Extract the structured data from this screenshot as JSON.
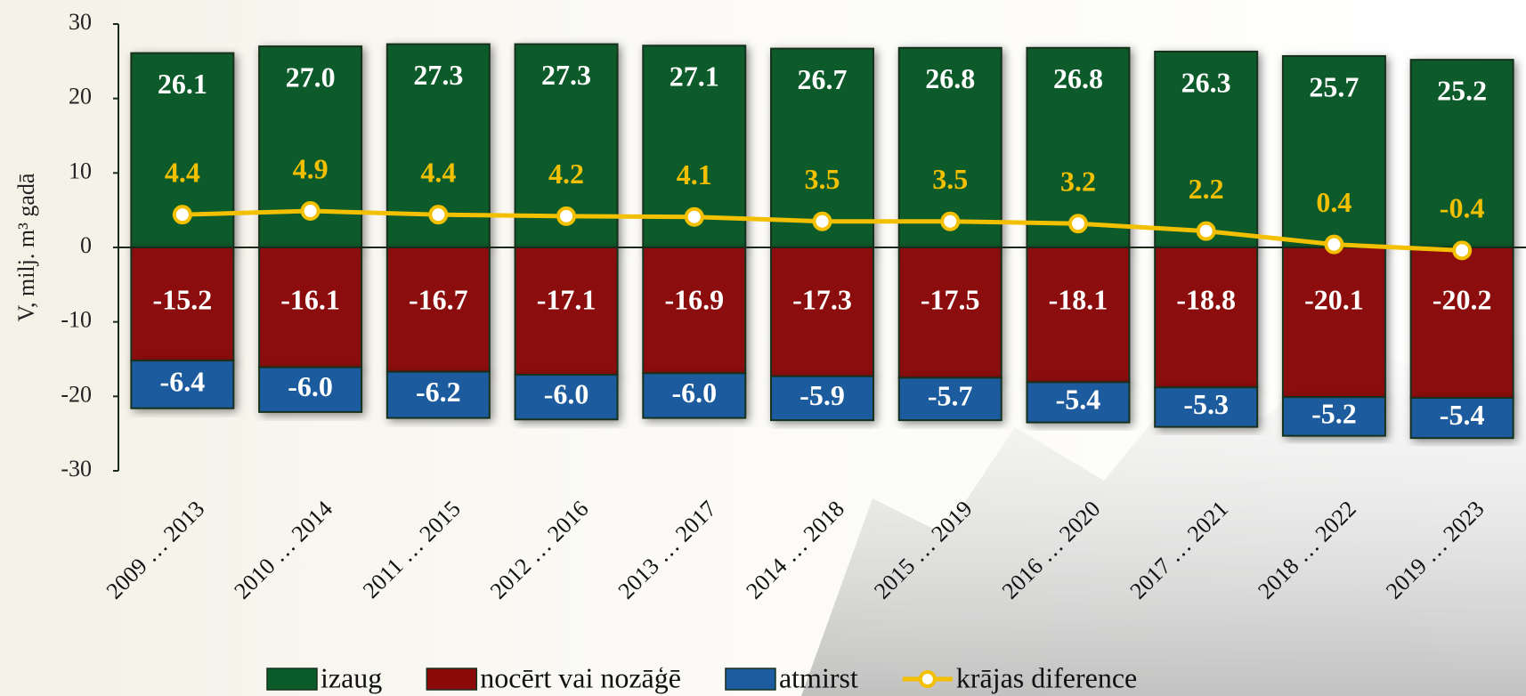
{
  "chart_data": {
    "type": "bar",
    "stacked": true,
    "y_label": "V, milj. m³ gadā",
    "categories": [
      "2009 … 2013",
      "2010 … 2014",
      "2011 … 2015",
      "2012 … 2016",
      "2013 … 2017",
      "2014 … 2018",
      "2015 … 2019",
      "2016 … 2020",
      "2017 … 2021",
      "2018 … 2022",
      "2019 … 2023"
    ],
    "series": [
      {
        "name": "izaug",
        "type": "bar",
        "color": "#0b5a2a",
        "values": [
          26.1,
          27.0,
          27.3,
          27.3,
          27.1,
          26.7,
          26.8,
          26.8,
          26.3,
          25.7,
          25.2
        ],
        "value_labels": [
          "26.1",
          "27.0",
          "27.3",
          "27.3",
          "27.1",
          "26.7",
          "26.8",
          "26.8",
          "26.3",
          "25.7",
          "25.2"
        ]
      },
      {
        "name": "nocērt vai nozāģē",
        "type": "bar",
        "color": "#8c0a0a",
        "values": [
          -15.2,
          -16.1,
          -16.7,
          -17.1,
          -16.9,
          -17.3,
          -17.5,
          -18.1,
          -18.8,
          -20.1,
          -20.2
        ],
        "value_labels": [
          "-15.2",
          "-16.1",
          "-16.7",
          "-17.1",
          "-16.9",
          "-17.3",
          "-17.5",
          "-18.1",
          "-18.8",
          "-20.1",
          "-20.2"
        ]
      },
      {
        "name": "atmirst",
        "type": "bar",
        "color": "#1d5c9e",
        "values": [
          -6.4,
          -6.0,
          -6.2,
          -6.0,
          -6.0,
          -5.9,
          -5.7,
          -5.4,
          -5.3,
          -5.2,
          -5.4
        ],
        "value_labels": [
          "-6.4",
          "-6.0",
          "-6.2",
          "-6.0",
          "-6.0",
          "-5.9",
          "-5.7",
          "-5.4",
          "-5.3",
          "-5.2",
          "-5.4"
        ]
      },
      {
        "name": "krājas diference",
        "type": "line",
        "color": "#f2c000",
        "values": [
          4.4,
          4.9,
          4.4,
          4.2,
          4.1,
          3.5,
          3.5,
          3.2,
          2.2,
          0.4,
          -0.4
        ],
        "value_labels": [
          "4.4",
          "4.9",
          "4.4",
          "4.2",
          "4.1",
          "3.5",
          "3.5",
          "3.2",
          "2.2",
          "0.4",
          "-0.4"
        ]
      }
    ],
    "ylim": [
      -30,
      30
    ],
    "yticks": [
      -30,
      -20,
      -10,
      0,
      10,
      20,
      30
    ],
    "grid": false,
    "legend": "bottom"
  }
}
